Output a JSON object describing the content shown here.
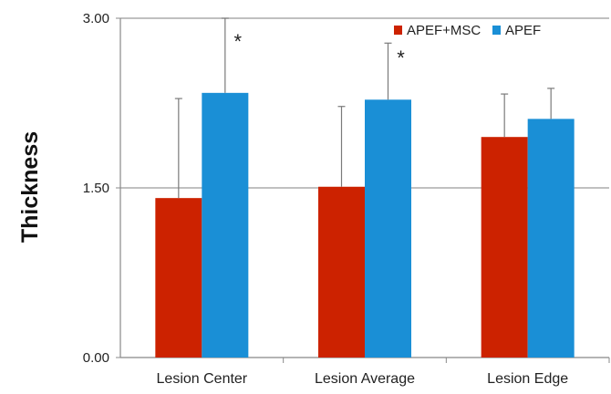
{
  "chart_data": {
    "type": "bar",
    "title": "",
    "xlabel": "",
    "ylabel": "Thickness",
    "ylim": [
      0,
      3
    ],
    "yticks": [
      "0.00",
      "1.50",
      "3.00"
    ],
    "categories": [
      "Lesion Center",
      "Lesion Average",
      "Lesion Edge"
    ],
    "series": [
      {
        "name": "APEF+MSC",
        "color": "#cc2200",
        "values": [
          1.41,
          1.51,
          1.95
        ],
        "errors": [
          0.88,
          0.71,
          0.38
        ]
      },
      {
        "name": "APEF",
        "color": "#1a8fd6",
        "values": [
          2.34,
          2.28,
          2.11
        ],
        "errors": [
          0.66,
          0.5,
          0.27
        ]
      }
    ],
    "annotations": [
      {
        "category": "Lesion Center",
        "series": "APEF",
        "text": "*"
      },
      {
        "category": "Lesion Average",
        "series": "APEF",
        "text": "*"
      }
    ],
    "grid": "horizontal",
    "legend_position": "top-right"
  }
}
